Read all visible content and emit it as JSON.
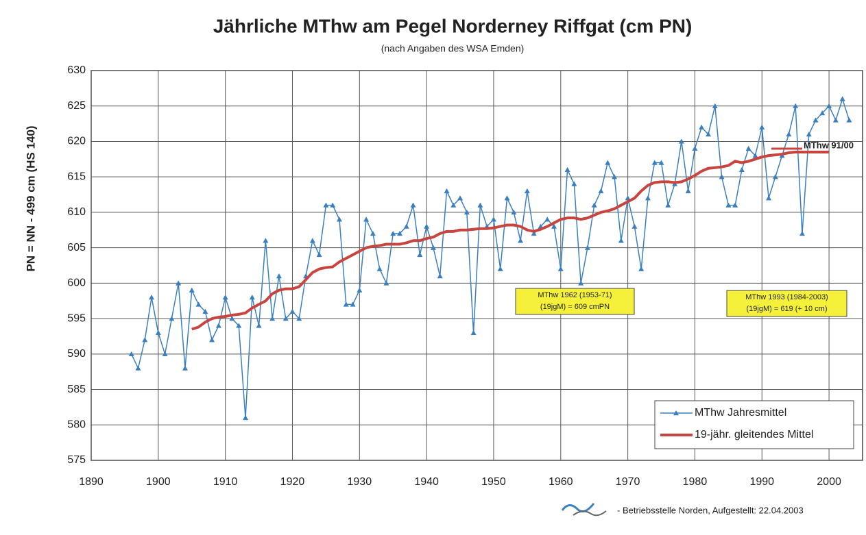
{
  "chart_data": {
    "type": "line",
    "title": "Jährliche MThw am Pegel Norderney Riffgat (cm PN)",
    "subtitle": "(nach Angaben des WSA Emden)",
    "y_label": "PN = NN - 499 cm (HS 140)",
    "x": [
      1896,
      1897,
      1898,
      1899,
      1900,
      1901,
      1902,
      1903,
      1904,
      1905,
      1906,
      1907,
      1908,
      1909,
      1910,
      1911,
      1912,
      1913,
      1914,
      1915,
      1916,
      1917,
      1918,
      1919,
      1920,
      1921,
      1922,
      1923,
      1924,
      1925,
      1926,
      1927,
      1928,
      1929,
      1930,
      1931,
      1932,
      1933,
      1934,
      1935,
      1936,
      1937,
      1938,
      1939,
      1940,
      1941,
      1942,
      1943,
      1944,
      1945,
      1946,
      1947,
      1948,
      1949,
      1950,
      1951,
      1952,
      1953,
      1954,
      1955,
      1956,
      1957,
      1958,
      1959,
      1960,
      1961,
      1962,
      1963,
      1964,
      1965,
      1966,
      1967,
      1968,
      1969,
      1970,
      1971,
      1972,
      1973,
      1974,
      1975,
      1976,
      1977,
      1978,
      1979,
      1980,
      1981,
      1982,
      1983,
      1984,
      1985,
      1986,
      1987,
      1988,
      1989,
      1990,
      1991,
      1992,
      1993,
      1994,
      1995,
      1996,
      1997,
      1998,
      1999,
      2000,
      2001,
      2002,
      2003
    ],
    "series": [
      {
        "name": "MThw Jahresmittel",
        "color": "#3a7fc0",
        "marker": "triangle",
        "values": [
          590,
          588,
          592,
          598,
          593,
          590,
          595,
          600,
          588,
          599,
          597,
          596,
          592,
          594,
          598,
          595,
          594,
          581,
          598,
          594,
          606,
          595,
          601,
          595,
          596,
          595,
          601,
          606,
          604,
          611,
          611,
          609,
          597,
          597,
          599,
          609,
          607,
          602,
          600,
          607,
          607,
          608,
          611,
          604,
          608,
          605,
          601,
          613,
          611,
          612,
          610,
          593,
          611,
          608,
          609,
          602,
          612,
          610,
          606,
          613,
          607,
          608,
          609,
          608,
          602,
          616,
          614,
          600,
          605,
          611,
          613,
          617,
          615,
          606,
          612,
          608,
          602,
          612,
          617,
          617,
          611,
          614,
          620,
          613,
          619,
          622,
          621,
          625,
          615,
          611,
          611,
          616,
          619,
          618,
          622,
          612,
          615,
          618,
          621,
          625,
          607,
          621,
          623,
          624,
          625,
          623,
          626,
          623
        ]
      },
      {
        "name": "19-jähr. gleitendes Mittel",
        "color": "#c8443f",
        "values": [
          null,
          null,
          null,
          null,
          null,
          null,
          null,
          null,
          null,
          593.5,
          593.8,
          594.5,
          595,
          595.2,
          595.3,
          595.5,
          595.6,
          595.8,
          596.5,
          597,
          597.5,
          598.5,
          599,
          599.2,
          599.2,
          599.5,
          600.5,
          601.5,
          602,
          602.2,
          602.3,
          603,
          603.5,
          604,
          604.5,
          605,
          605.2,
          605.3,
          605.5,
          605.5,
          605.5,
          605.7,
          606,
          606,
          606.3,
          606.5,
          607,
          607.3,
          607.3,
          607.5,
          607.5,
          607.6,
          607.7,
          607.7,
          607.8,
          608,
          608.2,
          608.2,
          608,
          607.5,
          607.3,
          607.6,
          608,
          608.5,
          609,
          609.2,
          609.2,
          609,
          609.2,
          609.6,
          610,
          610.2,
          610.5,
          611,
          611.5,
          612,
          613,
          613.8,
          614.2,
          614.3,
          614.3,
          614.2,
          614.3,
          614.7,
          615.2,
          615.8,
          616.2,
          616.3,
          616.4,
          616.6,
          617.2,
          617,
          617.2,
          617.5,
          617.8,
          618,
          618.1,
          618.2,
          618.4,
          618.5,
          618.5,
          618.5,
          618.5,
          618.5,
          618.5,
          null,
          null,
          null
        ]
      }
    ],
    "xlim": [
      1890,
      2005
    ],
    "xticks": [
      1890,
      1900,
      1910,
      1920,
      1930,
      1940,
      1950,
      1960,
      1970,
      1980,
      1990,
      2000
    ],
    "ylim": [
      575,
      630
    ],
    "yticks": [
      575,
      580,
      585,
      590,
      595,
      600,
      605,
      610,
      615,
      620,
      625,
      630
    ],
    "grid": true,
    "legend": "lower right",
    "annotations": [
      {
        "lines": [
          "MThw 91/00"
        ]
      },
      {
        "lines": [
          "MThw 1962 (1953-71)",
          "(19jgM) = 609 cmPN"
        ]
      },
      {
        "lines": [
          "MThw 1993 (1984-2003)",
          "(19jgM) = 619 (+ 10 cm)"
        ]
      }
    ],
    "footer": "- Betriebsstelle Norden, Aufgestellt: 22.04.2003"
  }
}
